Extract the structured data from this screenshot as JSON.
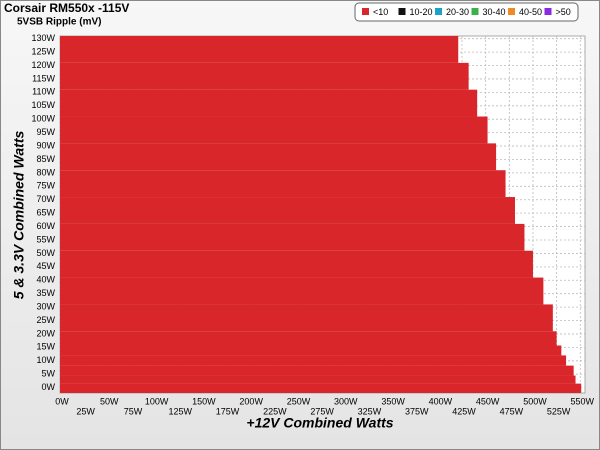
{
  "chart_data": {
    "type": "step-map",
    "title": "Corsair RM550x -115V",
    "subtitle": "5VSB Ripple (mV)",
    "x_label": "+12V Combined Watts",
    "y_label": "5 & 3.3V Combined Watts",
    "xlim": [
      0,
      555
    ],
    "ylim": [
      -2,
      131
    ],
    "xticks": [
      {
        "value": 0,
        "label": "0W"
      },
      {
        "value": 25,
        "label": "25W"
      },
      {
        "value": 50,
        "label": "50W"
      },
      {
        "value": 75,
        "label": "75W"
      },
      {
        "value": 100,
        "label": "100W"
      },
      {
        "value": 125,
        "label": "125W"
      },
      {
        "value": 150,
        "label": "150W"
      },
      {
        "value": 175,
        "label": "175W"
      },
      {
        "value": 200,
        "label": "200W"
      },
      {
        "value": 225,
        "label": "225W"
      },
      {
        "value": 250,
        "label": "250W"
      },
      {
        "value": 275,
        "label": "275W"
      },
      {
        "value": 300,
        "label": "300W"
      },
      {
        "value": 325,
        "label": "325W"
      },
      {
        "value": 350,
        "label": "350W"
      },
      {
        "value": 375,
        "label": "375W"
      },
      {
        "value": 400,
        "label": "400W"
      },
      {
        "value": 425,
        "label": "425W"
      },
      {
        "value": 450,
        "label": "450W"
      },
      {
        "value": 475,
        "label": "475W"
      },
      {
        "value": 500,
        "label": "500W"
      },
      {
        "value": 525,
        "label": "525W"
      },
      {
        "value": 550,
        "label": "550W"
      }
    ],
    "yticks": [
      {
        "value": 0,
        "label": "0W"
      },
      {
        "value": 5,
        "label": "5W"
      },
      {
        "value": 10,
        "label": "10W"
      },
      {
        "value": 15,
        "label": "15W"
      },
      {
        "value": 20,
        "label": "20W"
      },
      {
        "value": 25,
        "label": "25W"
      },
      {
        "value": 30,
        "label": "30W"
      },
      {
        "value": 35,
        "label": "35W"
      },
      {
        "value": 40,
        "label": "40W"
      },
      {
        "value": 45,
        "label": "45W"
      },
      {
        "value": 50,
        "label": "50W"
      },
      {
        "value": 55,
        "label": "55W"
      },
      {
        "value": 60,
        "label": "60W"
      },
      {
        "value": 65,
        "label": "65W"
      },
      {
        "value": 70,
        "label": "70W"
      },
      {
        "value": 75,
        "label": "75W"
      },
      {
        "value": 80,
        "label": "80W"
      },
      {
        "value": 85,
        "label": "85W"
      },
      {
        "value": 90,
        "label": "90W"
      },
      {
        "value": 95,
        "label": "95W"
      },
      {
        "value": 100,
        "label": "100W"
      },
      {
        "value": 105,
        "label": "105W"
      },
      {
        "value": 110,
        "label": "110W"
      },
      {
        "value": 115,
        "label": "115W"
      },
      {
        "value": 120,
        "label": "120W"
      },
      {
        "value": 125,
        "label": "125W"
      },
      {
        "value": 130,
        "label": "130W"
      }
    ],
    "grid": true,
    "legend": "top-right",
    "series": [
      {
        "name": "<10",
        "color": "#d9262b",
        "y_edges": [
          131,
          121,
          111,
          101,
          91,
          81,
          71,
          61,
          51,
          41,
          31,
          21,
          15.7,
          12,
          8.2,
          4.5,
          1.5,
          -2
        ],
        "values": [
          421,
          432,
          441,
          452,
          461,
          471,
          481,
          491,
          500,
          511,
          521,
          525,
          530,
          535,
          543,
          545,
          551
        ]
      },
      {
        "name": "10-20",
        "color": "#111111"
      },
      {
        "name": "20-30",
        "color": "#1aa3c8"
      },
      {
        "name": "30-40",
        "color": "#3cb04a"
      },
      {
        "name": "40-50",
        "color": "#f08a24"
      },
      {
        "name": ">50",
        "color": "#8a2be2"
      }
    ]
  }
}
